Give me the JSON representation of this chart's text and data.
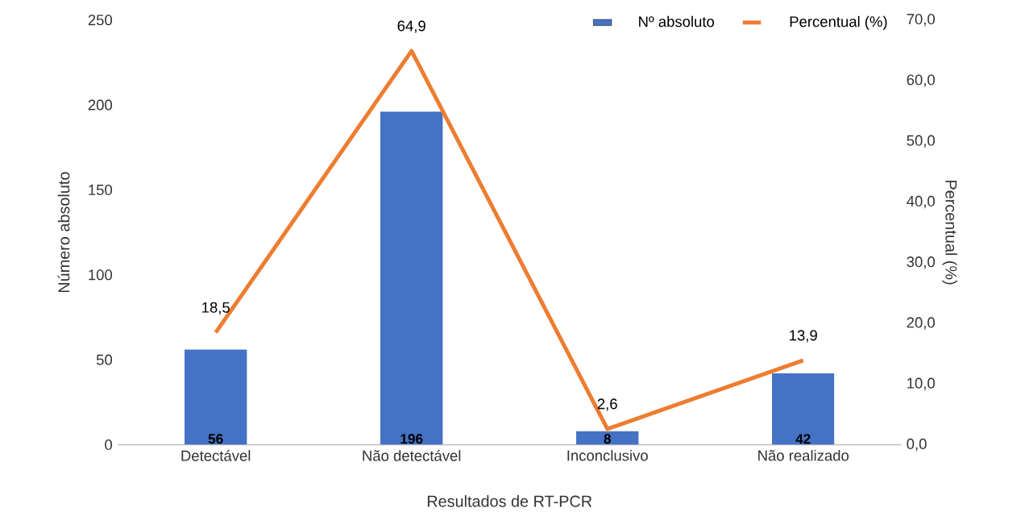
{
  "chart_data": {
    "type": "bar",
    "xlabel": "Resultados de RT-PCR",
    "ylabel": "Número absoluto",
    "y2label": "Percentual (%)",
    "categories": [
      "Detectável",
      "Não detectável",
      "Inconclusivo",
      "Não realizado"
    ],
    "series": [
      {
        "name": "Nº absoluto",
        "color": "#4472c4",
        "values": [
          56,
          196,
          8,
          42
        ],
        "value_labels": [
          "56",
          "196",
          "8",
          "42"
        ]
      },
      {
        "name": "Percentual (%)",
        "type": "line",
        "axis": "y2",
        "color": "#ed7d31",
        "values": [
          18.5,
          64.9,
          2.6,
          13.9
        ],
        "value_labels": [
          "18,5",
          "64,9",
          "2,6",
          "13,9"
        ]
      }
    ],
    "ylim": [
      0,
      250
    ],
    "yticks": [
      0,
      50,
      100,
      150,
      200,
      250
    ],
    "y2lim": [
      0,
      70
    ],
    "y2ticks": [
      {
        "value": 0,
        "label": "0,0"
      },
      {
        "value": 10,
        "label": "10,0"
      },
      {
        "value": 20,
        "label": "20,0"
      },
      {
        "value": 30,
        "label": "30,0"
      },
      {
        "value": 40,
        "label": "40,0"
      },
      {
        "value": 50,
        "label": "50,0"
      },
      {
        "value": 60,
        "label": "60,0"
      },
      {
        "value": 70,
        "label": "70,0"
      }
    ],
    "legend": "top right",
    "grid": false
  }
}
